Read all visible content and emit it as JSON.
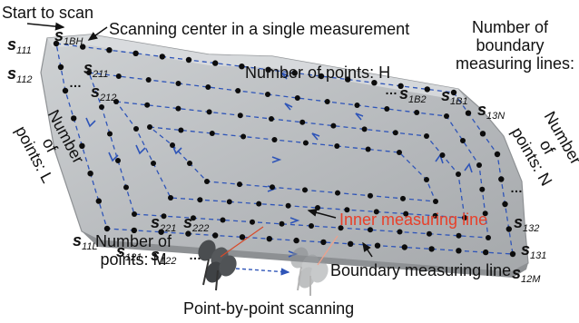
{
  "labels": {
    "start": "Start to scan",
    "center": "Scanning center in a single measurement",
    "points_h": "Number of points: H",
    "boundary_lines": [
      "Number of",
      "boundary",
      "measuring lines: B"
    ],
    "points_n": [
      "Number",
      "of",
      "points: N"
    ],
    "points_l": [
      "Number",
      "of",
      "points: L"
    ],
    "points_m": [
      "Number of",
      "points: M"
    ],
    "inner_line": "Inner measuring line",
    "boundary_line": "Boundary measuring line",
    "point_by_point": "Point-by-point scanning"
  },
  "symbols": {
    "s111": {
      "base": "s",
      "sub": "111"
    },
    "s1BH": {
      "base": "s",
      "sub": "1BH"
    },
    "s112": {
      "base": "s",
      "sub": "112"
    },
    "s211": {
      "base": "s",
      "sub": "211"
    },
    "s212": {
      "base": "s",
      "sub": "212"
    },
    "s1B2": {
      "base": "s",
      "sub": "1B2"
    },
    "s1B1": {
      "base": "s",
      "sub": "1B1"
    },
    "s13N": {
      "base": "s",
      "sub": "13N"
    },
    "s11L": {
      "base": "s",
      "sub": "11L"
    },
    "s121": {
      "base": "s",
      "sub": "121"
    },
    "s122": {
      "base": "s",
      "sub": "122"
    },
    "s221": {
      "base": "s",
      "sub": "221"
    },
    "s222": {
      "base": "s",
      "sub": "222"
    },
    "s132": {
      "base": "s",
      "sub": "132"
    },
    "s131": {
      "base": "s",
      "sub": "131"
    },
    "s12M": {
      "base": "s",
      "sub": "12M"
    }
  },
  "ellipsis": "…",
  "colors": {
    "panel": "#b9bcbe",
    "panel_edge": "#9a9da0",
    "dash": "#2f55b8",
    "dot": "#0c0c0c",
    "red": "#e8402a"
  }
}
